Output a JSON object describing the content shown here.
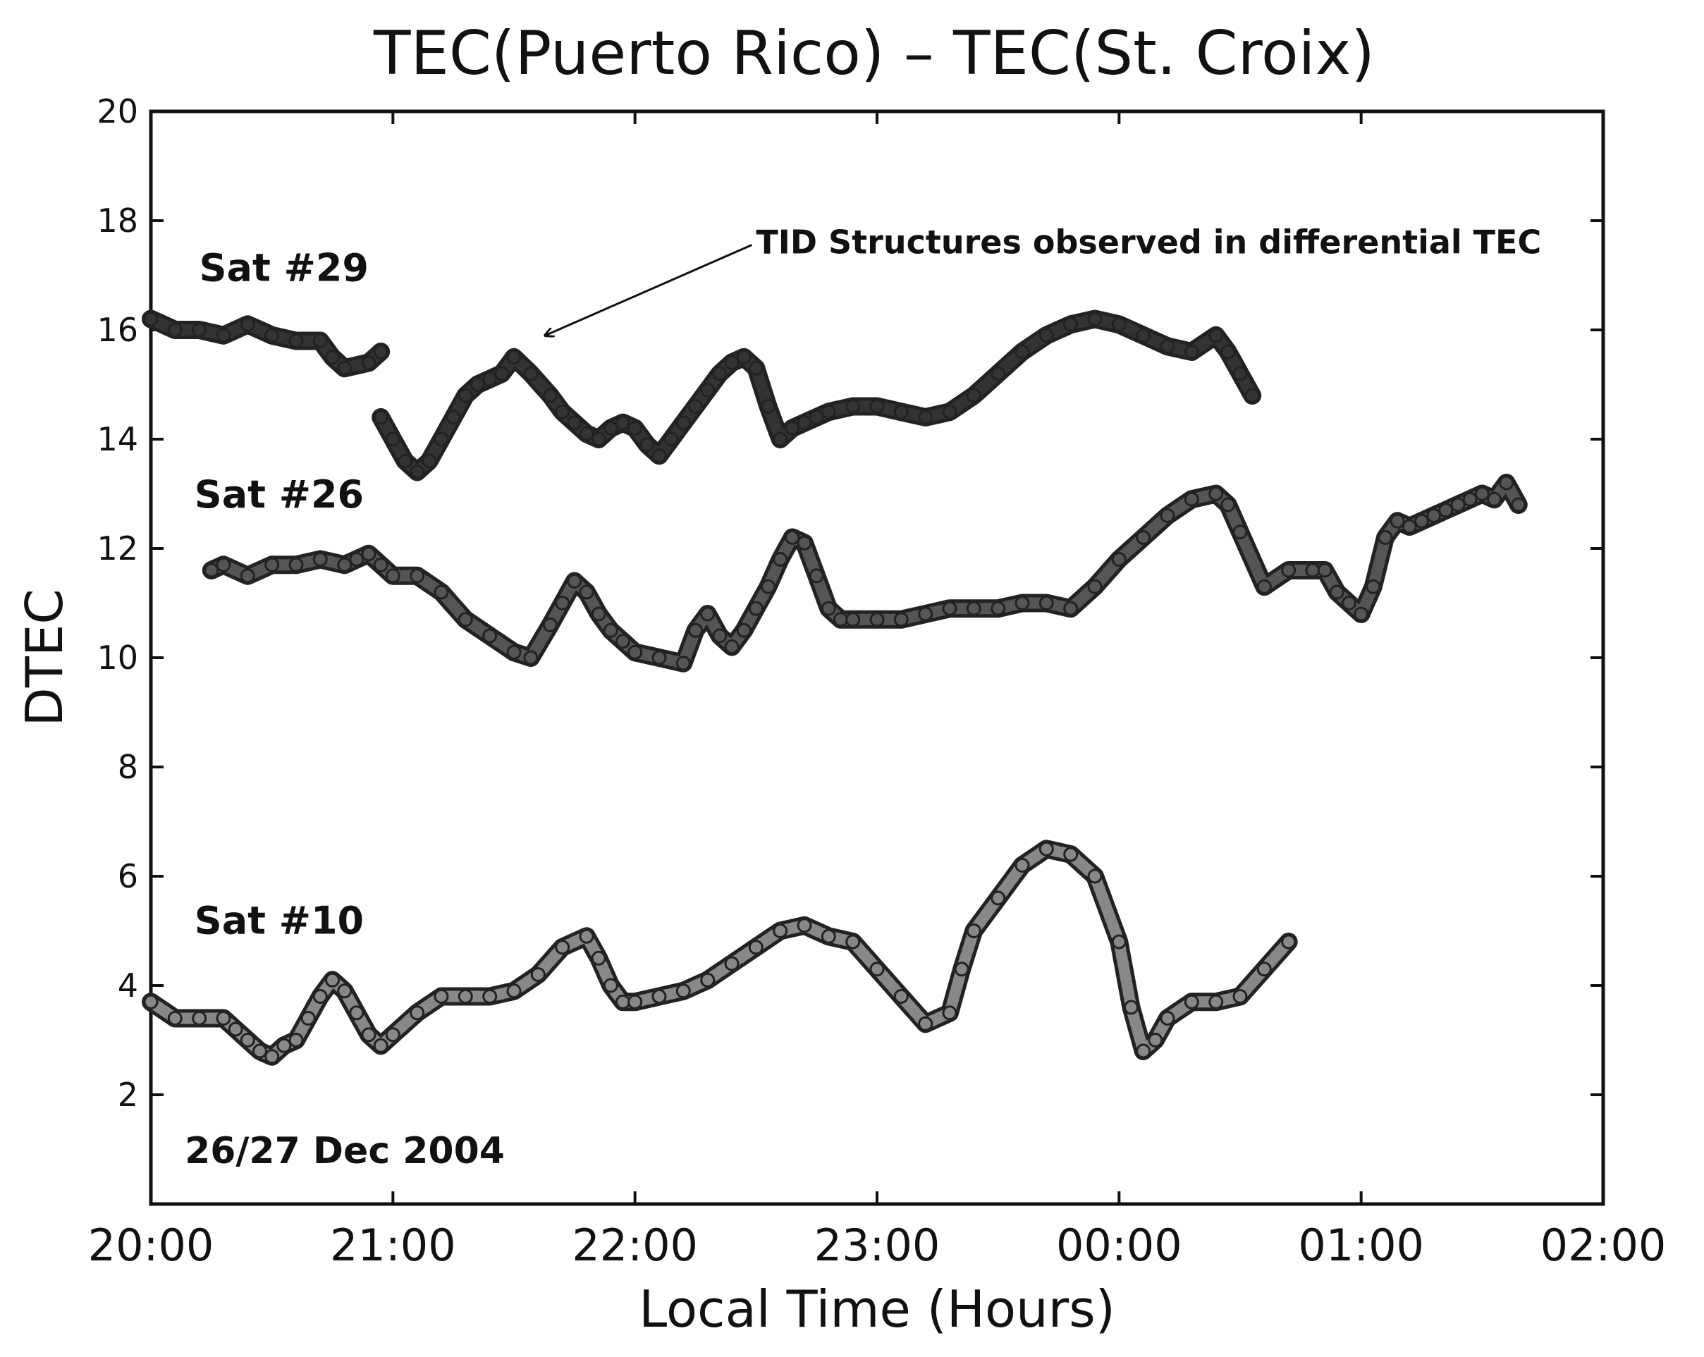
{
  "chart_data": {
    "type": "line",
    "title": "TEC(Puerto Rico) – TEC(St. Croix)",
    "xlabel": "Local Time (Hours)",
    "ylabel": "DTEC",
    "xlim": [
      0,
      6
    ],
    "ylim": [
      0,
      20
    ],
    "x_unit": "hours after 20:00 local time",
    "xticks": [
      {
        "value": 0,
        "label": "20:00"
      },
      {
        "value": 1,
        "label": "21:00"
      },
      {
        "value": 2,
        "label": "22:00"
      },
      {
        "value": 3,
        "label": "23:00"
      },
      {
        "value": 4,
        "label": "00:00"
      },
      {
        "value": 5,
        "label": "01:00"
      },
      {
        "value": 6,
        "label": "02:00"
      }
    ],
    "yticks": [
      {
        "value": 2,
        "label": "2"
      },
      {
        "value": 4,
        "label": "4"
      },
      {
        "value": 6,
        "label": "6"
      },
      {
        "value": 8,
        "label": "8"
      },
      {
        "value": 10,
        "label": "10"
      },
      {
        "value": 12,
        "label": "12"
      },
      {
        "value": 14,
        "label": "14"
      },
      {
        "value": 16,
        "label": "16"
      },
      {
        "value": 18,
        "label": "18"
      },
      {
        "value": 20,
        "label": "20"
      }
    ],
    "grid": false,
    "series": [
      {
        "name": "Sat #29",
        "color": "#333333",
        "segments": [
          {
            "x": [
              0.0,
              0.1,
              0.2,
              0.3,
              0.4,
              0.5,
              0.6,
              0.7,
              0.75,
              0.8,
              0.9,
              0.95
            ],
            "y": [
              16.2,
              16.0,
              16.0,
              15.9,
              16.1,
              15.9,
              15.8,
              15.8,
              15.5,
              15.3,
              15.4,
              15.6
            ]
          },
          {
            "x": [
              0.95,
              1.0,
              1.05,
              1.1,
              1.15,
              1.2,
              1.25,
              1.3,
              1.35,
              1.4,
              1.45,
              1.5,
              1.57,
              1.65,
              1.7,
              1.75,
              1.8,
              1.85,
              1.9,
              1.95,
              2.0,
              2.05,
              2.1,
              2.15,
              2.2,
              2.25,
              2.3,
              2.35,
              2.4,
              2.45,
              2.5,
              2.55,
              2.6,
              2.65,
              2.7,
              2.75,
              2.8,
              2.9,
              3.0,
              3.1,
              3.2,
              3.3,
              3.4,
              3.5,
              3.6,
              3.7,
              3.8,
              3.9,
              4.0,
              4.1,
              4.2,
              4.3,
              4.4,
              4.45,
              4.5,
              4.55
            ],
            "y": [
              14.4,
              14.0,
              13.6,
              13.4,
              13.6,
              14.0,
              14.4,
              14.8,
              15.0,
              15.1,
              15.2,
              15.5,
              15.2,
              14.8,
              14.5,
              14.3,
              14.1,
              14.0,
              14.2,
              14.3,
              14.2,
              13.9,
              13.7,
              14.0,
              14.3,
              14.6,
              14.9,
              15.2,
              15.4,
              15.5,
              15.3,
              14.6,
              14.0,
              14.2,
              14.3,
              14.4,
              14.5,
              14.6,
              14.6,
              14.5,
              14.4,
              14.5,
              14.8,
              15.2,
              15.6,
              15.9,
              16.1,
              16.2,
              16.1,
              15.9,
              15.7,
              15.6,
              15.9,
              15.6,
              15.2,
              14.8
            ]
          }
        ]
      },
      {
        "name": "Sat #26",
        "color": "#555555",
        "segments": [
          {
            "x": [
              0.25,
              0.3,
              0.4,
              0.5,
              0.6,
              0.7,
              0.8,
              0.85,
              0.9,
              0.95,
              1.0,
              1.1,
              1.2,
              1.3,
              1.4,
              1.5,
              1.57,
              1.65,
              1.7,
              1.75,
              1.8,
              1.85,
              1.9,
              1.95,
              2.0,
              2.1,
              2.2,
              2.25,
              2.3,
              2.35,
              2.4,
              2.45,
              2.5,
              2.55,
              2.6,
              2.65,
              2.7,
              2.75,
              2.8,
              2.85,
              2.9,
              3.0,
              3.1,
              3.2,
              3.3,
              3.4,
              3.5,
              3.6,
              3.7,
              3.8,
              3.9,
              4.0,
              4.1,
              4.2,
              4.3,
              4.4,
              4.45,
              4.5,
              4.6,
              4.7,
              4.8,
              4.85,
              4.9,
              4.95,
              5.0,
              5.05,
              5.1,
              5.15,
              5.2,
              5.25,
              5.3,
              5.35,
              5.4,
              5.45,
              5.5,
              5.55,
              5.6,
              5.65
            ],
            "y": [
              11.6,
              11.7,
              11.5,
              11.7,
              11.7,
              11.8,
              11.7,
              11.8,
              11.9,
              11.7,
              11.5,
              11.5,
              11.2,
              10.7,
              10.4,
              10.1,
              10.0,
              10.6,
              11.0,
              11.4,
              11.2,
              10.8,
              10.5,
              10.3,
              10.1,
              10.0,
              9.9,
              10.5,
              10.8,
              10.4,
              10.2,
              10.5,
              10.9,
              11.3,
              11.8,
              12.2,
              12.1,
              11.5,
              10.9,
              10.7,
              10.7,
              10.7,
              10.7,
              10.8,
              10.9,
              10.9,
              10.9,
              11.0,
              11.0,
              10.9,
              11.3,
              11.8,
              12.2,
              12.6,
              12.9,
              13.0,
              12.8,
              12.3,
              11.3,
              11.6,
              11.6,
              11.6,
              11.2,
              11.0,
              10.8,
              11.3,
              12.2,
              12.5,
              12.4,
              12.5,
              12.6,
              12.7,
              12.8,
              12.9,
              13.0,
              12.9,
              13.2,
              12.8
            ]
          }
        ]
      },
      {
        "name": "Sat #10",
        "color": "#888888",
        "segments": [
          {
            "x": [
              0.0,
              0.1,
              0.2,
              0.3,
              0.35,
              0.4,
              0.45,
              0.5,
              0.55,
              0.6,
              0.65,
              0.7,
              0.75,
              0.8,
              0.85,
              0.9,
              0.95,
              1.0,
              1.1,
              1.2,
              1.3,
              1.4,
              1.5,
              1.6,
              1.7,
              1.8,
              1.85,
              1.9,
              1.95,
              2.0,
              2.1,
              2.2,
              2.3,
              2.4,
              2.5,
              2.6,
              2.7,
              2.8,
              2.9,
              3.0,
              3.1,
              3.2,
              3.3,
              3.35,
              3.4,
              3.5,
              3.6,
              3.7,
              3.8,
              3.9,
              4.0,
              4.05,
              4.1,
              4.15,
              4.2,
              4.3,
              4.4,
              4.5,
              4.6,
              4.7
            ],
            "y": [
              3.7,
              3.4,
              3.4,
              3.4,
              3.2,
              3.0,
              2.8,
              2.7,
              2.9,
              3.0,
              3.4,
              3.8,
              4.1,
              3.9,
              3.5,
              3.1,
              2.9,
              3.1,
              3.5,
              3.8,
              3.8,
              3.8,
              3.9,
              4.2,
              4.7,
              4.9,
              4.5,
              4.0,
              3.7,
              3.7,
              3.8,
              3.9,
              4.1,
              4.4,
              4.7,
              5.0,
              5.1,
              4.9,
              4.8,
              4.3,
              3.8,
              3.3,
              3.5,
              4.3,
              5.0,
              5.6,
              6.2,
              6.5,
              6.4,
              6.0,
              4.8,
              3.6,
              2.8,
              3.0,
              3.4,
              3.7,
              3.7,
              3.8,
              4.3,
              4.8
            ]
          }
        ]
      }
    ],
    "series_labels": [
      {
        "text": "Sat #29",
        "x": 0.2,
        "y": 16.9
      },
      {
        "text": "Sat #26",
        "x": 0.18,
        "y": 12.75
      },
      {
        "text": "Sat #10",
        "x": 0.18,
        "y": 4.95
      }
    ],
    "annotations": [
      {
        "text": "TID Structures observed in differential TEC",
        "text_x": 2.5,
        "text_y": 17.4,
        "arrow_to_x": 1.63,
        "arrow_to_y": 15.9
      }
    ],
    "notes": [
      {
        "text": "26/27 Dec 2004",
        "x": 0.14,
        "y": 0.75
      }
    ]
  }
}
